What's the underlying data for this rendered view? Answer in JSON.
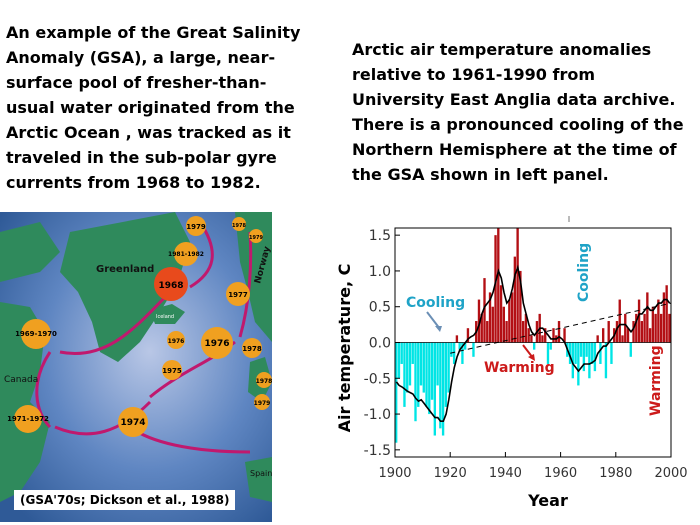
{
  "left_text": "An example of the Great Salinity Anomaly (GSA), a large, near-surface pool of fresher-than-usual water originated from the Arctic Ocean , was tracked as it traveled in the sub-polar gyre currents from 1968 to 1982.",
  "right_text": "Arctic air temperature anomalies relative to 1961-1990 from University East Anglia data archive. There is a pronounced cooling of the Northern Hemisphere at the time of the GSA shown in left panel.",
  "map": {
    "caption": "(GSA'70s; Dickson et al., 1988)",
    "labels": {
      "greenland": "Greenland",
      "iceland": "Iceland",
      "norway": "Norway",
      "canada": "Canada",
      "spain": "Spain"
    },
    "years": [
      "1968",
      "1969-1970",
      "1971-1972",
      "1974",
      "1975",
      "1976",
      "1977",
      "1978",
      "1979",
      "1981-1982",
      "1976",
      "1978",
      "1979",
      "1978",
      "1979"
    ],
    "colors": {
      "ocean": "#3d6fa8",
      "land": "#2f8a5c",
      "arrow": "#c0196e",
      "marker": "#f0a020"
    }
  },
  "chart_data": {
    "type": "bar",
    "xlabel": "Year",
    "ylabel": "Air temperature, C",
    "xlim": [
      1900,
      2000
    ],
    "ylim": [
      -1.6,
      1.6
    ],
    "xticks": [
      "1900",
      "1920",
      "1940",
      "1960",
      "1980",
      "2000"
    ],
    "yticks": [
      "1.5",
      "1.0",
      "0.5",
      "0.0",
      "-0.5",
      "-1.0",
      "-1.5"
    ],
    "annotations": [
      "Cooling",
      "Warming",
      "Cooling",
      "Warming"
    ],
    "colors": {
      "positive": "#b30f14",
      "negative": "#00e5e5",
      "line": "#000000",
      "trend": "#000000",
      "cooling": "#1fa3c7",
      "warming": "#cc1b1b"
    },
    "x": [
      1900,
      1901,
      1902,
      1903,
      1904,
      1905,
      1906,
      1907,
      1908,
      1909,
      1910,
      1911,
      1912,
      1913,
      1914,
      1915,
      1916,
      1917,
      1918,
      1919,
      1920,
      1921,
      1922,
      1923,
      1924,
      1925,
      1926,
      1927,
      1928,
      1929,
      1930,
      1931,
      1932,
      1933,
      1934,
      1935,
      1936,
      1937,
      1938,
      1939,
      1940,
      1941,
      1942,
      1943,
      1944,
      1945,
      1946,
      1947,
      1948,
      1949,
      1950,
      1951,
      1952,
      1953,
      1954,
      1955,
      1956,
      1957,
      1958,
      1959,
      1960,
      1961,
      1962,
      1963,
      1964,
      1965,
      1966,
      1967,
      1968,
      1969,
      1970,
      1971,
      1972,
      1973,
      1974,
      1975,
      1976,
      1977,
      1978,
      1979,
      1980,
      1981,
      1982,
      1983,
      1984,
      1985,
      1986,
      1987,
      1988,
      1989,
      1990,
      1991,
      1992,
      1993,
      1994,
      1995,
      1996,
      1997,
      1998,
      1999
    ],
    "values": [
      -1.4,
      -0.5,
      -0.3,
      -0.9,
      -0.7,
      -0.6,
      -0.3,
      -1.1,
      -0.9,
      -0.6,
      -0.7,
      -0.9,
      -1.0,
      -0.8,
      -1.3,
      -0.6,
      -1.2,
      -1.3,
      -0.9,
      -0.7,
      -0.2,
      -0.3,
      0.1,
      -0.1,
      -0.3,
      -0.1,
      0.2,
      0.0,
      -0.2,
      0.3,
      0.6,
      0.4,
      0.9,
      0.3,
      0.7,
      0.5,
      1.5,
      1.6,
      0.8,
      0.5,
      0.3,
      0.6,
      0.7,
      1.2,
      1.6,
      1.0,
      0.3,
      0.4,
      0.2,
      0.1,
      -0.1,
      0.3,
      0.4,
      0.1,
      0.2,
      -0.3,
      -0.1,
      0.2,
      0.1,
      0.3,
      0.0,
      0.2,
      -0.2,
      -0.3,
      -0.5,
      -0.3,
      -0.6,
      -0.2,
      -0.4,
      -0.2,
      -0.5,
      -0.3,
      -0.4,
      0.1,
      -0.3,
      0.2,
      -0.5,
      0.3,
      -0.3,
      0.2,
      0.3,
      0.6,
      0.1,
      0.4,
      0.2,
      -0.2,
      0.3,
      0.4,
      0.6,
      0.3,
      0.4,
      0.7,
      0.2,
      0.5,
      0.4,
      0.6,
      0.4,
      0.7,
      0.8,
      0.4
    ],
    "smooth": [
      -0.55,
      -0.6,
      -0.62,
      -0.65,
      -0.68,
      -0.7,
      -0.72,
      -0.78,
      -0.82,
      -0.8,
      -0.85,
      -0.9,
      -0.95,
      -1.0,
      -1.05,
      -1.05,
      -1.1,
      -1.1,
      -1.0,
      -0.8,
      -0.55,
      -0.35,
      -0.2,
      -0.1,
      -0.05,
      0.0,
      0.05,
      0.08,
      0.1,
      0.15,
      0.25,
      0.4,
      0.5,
      0.55,
      0.6,
      0.7,
      0.85,
      1.0,
      0.9,
      0.7,
      0.55,
      0.6,
      0.75,
      0.95,
      1.05,
      0.85,
      0.55,
      0.4,
      0.25,
      0.15,
      0.1,
      0.15,
      0.2,
      0.2,
      0.15,
      0.1,
      0.05,
      0.05,
      0.05,
      0.08,
      0.05,
      0.0,
      -0.1,
      -0.2,
      -0.3,
      -0.35,
      -0.4,
      -0.35,
      -0.3,
      -0.3,
      -0.3,
      -0.28,
      -0.25,
      -0.15,
      -0.1,
      -0.05,
      -0.05,
      0.0,
      0.05,
      0.1,
      0.2,
      0.25,
      0.25,
      0.25,
      0.2,
      0.15,
      0.2,
      0.3,
      0.4,
      0.4,
      0.45,
      0.5,
      0.45,
      0.45,
      0.5,
      0.55,
      0.55,
      0.6,
      0.6,
      0.55
    ],
    "trend": [
      [
        1920,
        -0.15
      ],
      [
        2000,
        0.55
      ]
    ]
  }
}
